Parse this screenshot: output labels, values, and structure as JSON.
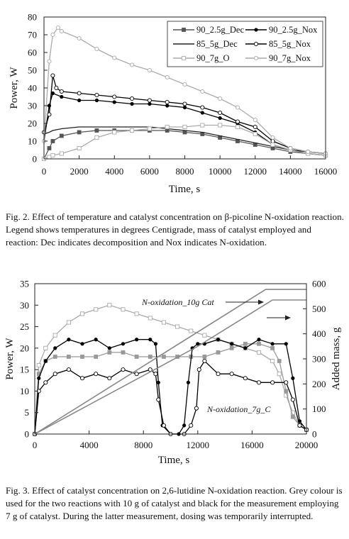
{
  "figures": {
    "fig2": {
      "caption": "Fig. 2.  Effect of temperature and catalyst concentration on β-picoline N-oxidation reaction. Legend shows temperatures in degrees Centigrade, mass of catalyst employed and reaction: Dec indicates decomposition and Nox indicates N-oxidation."
    },
    "fig3": {
      "caption": "Fig. 3.  Effect of catalyst concentration on 2,6-lutidine N-oxidation reaction. Grey colour is used for the two reactions with 10 g of catalyst and black for the measurement employing 7 g of catalyst. During the latter measurement, dosing was temporarily interrupted."
    }
  },
  "chart_data": [
    {
      "type": "line",
      "xlabel": "Time, s",
      "ylabel": "Power, W",
      "xlim": [
        0,
        16000
      ],
      "ylim": [
        0,
        80
      ],
      "xticks": [
        0,
        2000,
        4000,
        6000,
        8000,
        10000,
        12000,
        14000,
        16000
      ],
      "yticks": [
        0,
        10,
        20,
        30,
        40,
        50,
        60,
        70,
        80
      ],
      "legend_position": "top-right",
      "series": [
        {
          "name": "90_2.5g_Dec",
          "color": "#555555",
          "marker": "square-filled",
          "x": [
            0,
            300,
            500,
            1000,
            2000,
            3000,
            4000,
            5000,
            6000,
            7000,
            8000,
            9000,
            10000,
            11000,
            12000,
            13000,
            14000,
            15000,
            16000
          ],
          "y": [
            0,
            6,
            10,
            13,
            15,
            16,
            16,
            16,
            16,
            16,
            15,
            14,
            12,
            10,
            8,
            6,
            4,
            3,
            2
          ]
        },
        {
          "name": "90_2.5g_Nox",
          "color": "#000000",
          "marker": "circle-filled",
          "x": [
            0,
            300,
            500,
            1000,
            2000,
            3000,
            4000,
            5000,
            6000,
            7000,
            8000,
            9000,
            10000,
            11000,
            12000,
            13000,
            14000,
            15000,
            16000
          ],
          "y": [
            10,
            30,
            37,
            35,
            33,
            33,
            32,
            31,
            31,
            30,
            29,
            26,
            23,
            20,
            15,
            8,
            5,
            4,
            3
          ]
        },
        {
          "name": "85_5g_Dec",
          "color": "#222222",
          "marker": "none",
          "x": [
            0,
            300,
            500,
            1000,
            2000,
            3000,
            4000,
            5000,
            6000,
            7000,
            8000,
            9000,
            10000,
            11000,
            12000,
            13000,
            14000,
            15000,
            16000
          ],
          "y": [
            14,
            15,
            16,
            17,
            18,
            18,
            18,
            18,
            18,
            17,
            16,
            15,
            13,
            11,
            9,
            7,
            5,
            3,
            2
          ]
        },
        {
          "name": "85_5g_Nox",
          "color": "#000000",
          "marker": "circle-open",
          "x": [
            0,
            300,
            500,
            700,
            1000,
            2000,
            3000,
            4000,
            5000,
            6000,
            7000,
            8000,
            9000,
            10000,
            11000,
            12000,
            13000,
            14000,
            15000,
            16000
          ],
          "y": [
            15,
            25,
            47,
            40,
            38,
            37,
            36,
            35,
            34,
            33,
            32,
            31,
            29,
            26,
            21,
            18,
            10,
            6,
            4,
            3
          ]
        },
        {
          "name": "90_7g_O",
          "color": "#aaaaaa",
          "marker": "square-open",
          "x": [
            0,
            300,
            500,
            1000,
            2000,
            3000,
            4000,
            5000,
            6000,
            7000,
            8000,
            9000,
            10000,
            11000,
            12000,
            13000,
            14000,
            15000,
            16000
          ],
          "y": [
            0,
            1,
            2,
            3,
            6,
            12,
            15,
            16,
            17,
            18,
            18,
            19,
            19,
            18,
            14,
            8,
            5,
            3,
            2
          ]
        },
        {
          "name": "90_7g_Nox",
          "color": "#aaaaaa",
          "marker": "circle-open",
          "x": [
            0,
            300,
            500,
            800,
            1000,
            2000,
            3000,
            4000,
            5000,
            6000,
            7000,
            8000,
            9000,
            10000,
            11000,
            12000,
            13000,
            14000,
            15000,
            16000
          ],
          "y": [
            10,
            55,
            70,
            74,
            72,
            68,
            62,
            57,
            53,
            50,
            46,
            42,
            38,
            34,
            29,
            22,
            12,
            6,
            4,
            3
          ]
        }
      ]
    },
    {
      "type": "line",
      "xlabel": "Time, s",
      "ylabel": "Power, W",
      "y2label": "Added mass, g",
      "xlim": [
        0,
        20000
      ],
      "ylim": [
        0,
        35
      ],
      "y2lim": [
        0,
        600
      ],
      "xticks": [
        0,
        4000,
        8000,
        12000,
        16000,
        20000
      ],
      "yticks": [
        0,
        5,
        10,
        15,
        20,
        25,
        30,
        35
      ],
      "y2ticks": [
        0,
        100,
        200,
        300,
        400,
        500,
        600
      ],
      "annotations": [
        "N-oxidation_10g Cat",
        "N-oxidation_7g_C"
      ],
      "series": [
        {
          "color": "#aaaaaa",
          "marker": "square-open",
          "axis": "left",
          "x": [
            0,
            300,
            800,
            1500,
            2500,
            3500,
            4500,
            5500,
            6500,
            7500,
            8500,
            9500,
            10500,
            11500,
            12500,
            13500,
            14500,
            15500,
            16500,
            17500,
            18000,
            18500,
            19000,
            19500,
            20000
          ],
          "y": [
            0,
            16,
            20,
            23,
            26,
            28,
            29,
            30,
            29,
            28,
            27,
            26,
            25,
            24,
            23,
            22,
            21,
            20,
            19,
            17,
            14,
            9,
            5,
            2,
            1
          ]
        },
        {
          "color": "#999999",
          "marker": "square-filled",
          "axis": "left",
          "x": [
            0,
            300,
            800,
            1500,
            2500,
            3500,
            4500,
            5500,
            6500,
            7500,
            8500,
            9500,
            10500,
            11500,
            12500,
            13500,
            14500,
            15500,
            16500,
            17500,
            18000,
            18500,
            19000,
            19500,
            20000
          ],
          "y": [
            0,
            14,
            17,
            18,
            18,
            18,
            18,
            19,
            19,
            18,
            18,
            18,
            18,
            18,
            18,
            19,
            20,
            21,
            21,
            20,
            17,
            10,
            4,
            2,
            1
          ]
        },
        {
          "color": "#000000",
          "marker": "circle-filled",
          "axis": "left",
          "x": [
            0,
            300,
            800,
            1500,
            2500,
            3500,
            4500,
            5500,
            6500,
            7500,
            8500,
            8900,
            9100,
            9400,
            10000,
            10600,
            11000,
            11300,
            11600,
            12000,
            12500,
            13500,
            14500,
            15500,
            16500,
            17500,
            18500,
            19000,
            19500,
            20000
          ],
          "y": [
            0,
            13,
            17,
            20,
            22,
            21,
            22,
            20,
            21,
            22,
            22,
            21,
            12,
            2,
            0,
            0,
            2,
            12,
            20,
            21,
            21,
            22,
            21,
            20,
            22,
            21,
            21,
            13,
            3,
            1
          ]
        },
        {
          "color": "#000000",
          "marker": "circle-open",
          "axis": "left",
          "x": [
            0,
            300,
            800,
            1500,
            2500,
            3500,
            4500,
            5500,
            6500,
            7500,
            8500,
            8900,
            9100,
            9500,
            10000,
            11000,
            11500,
            11900,
            12100,
            12500,
            13500,
            14500,
            15500,
            16500,
            17500,
            18500,
            19000,
            19500,
            20000
          ],
          "y": [
            0,
            10,
            12,
            14,
            15,
            13,
            14,
            13,
            15,
            14,
            15,
            14,
            8,
            2,
            0,
            0,
            2,
            6,
            15,
            17,
            14,
            14,
            13,
            12,
            12,
            12,
            8,
            2,
            1
          ]
        },
        {
          "color": "#888888",
          "marker": "none",
          "axis": "right",
          "x": [
            0,
            17000,
            20000
          ],
          "y": [
            0,
            577,
            577
          ]
        },
        {
          "color": "#888888",
          "marker": "none",
          "axis": "right",
          "x": [
            0,
            12000,
            17500,
            20000
          ],
          "y": [
            0,
            350,
            535,
            535
          ]
        }
      ]
    }
  ]
}
